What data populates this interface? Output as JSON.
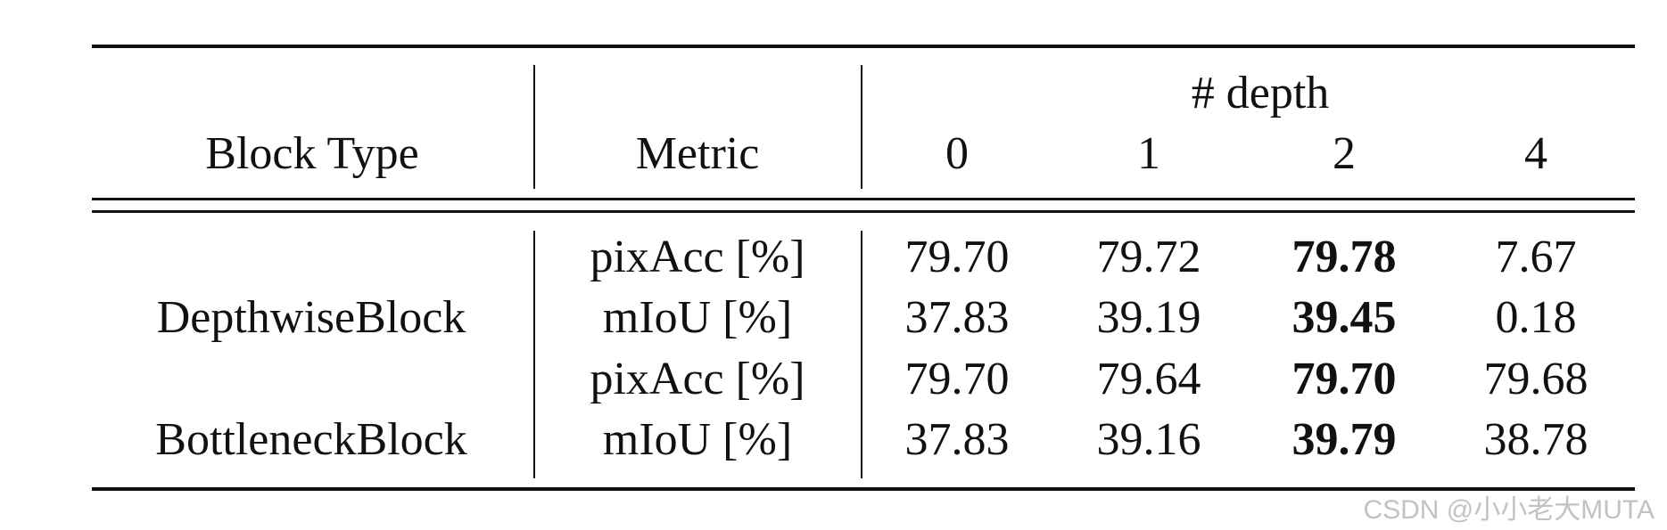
{
  "table": {
    "header": {
      "block_type": "Block Type",
      "metric": "Metric",
      "depth_group": "# depth",
      "depths": [
        "0",
        "1",
        "2",
        "4"
      ]
    },
    "blocks": [
      {
        "name": "DepthwiseBlock",
        "rows": [
          {
            "metric": "pixAcc [%]",
            "values": [
              "79.70",
              "79.72",
              "79.78",
              "7.67"
            ]
          },
          {
            "metric": "mIoU [%]",
            "values": [
              "37.83",
              "39.19",
              "39.45",
              "0.18"
            ]
          }
        ]
      },
      {
        "name": "BottleneckBlock",
        "rows": [
          {
            "metric": "pixAcc [%]",
            "values": [
              "79.70",
              "79.64",
              "79.70",
              "79.68"
            ]
          },
          {
            "metric": "mIoU [%]",
            "values": [
              "37.83",
              "39.16",
              "39.79",
              "38.78"
            ]
          }
        ]
      }
    ],
    "bold_column": "2"
  },
  "watermark": "CSDN @小小老大MUTA"
}
